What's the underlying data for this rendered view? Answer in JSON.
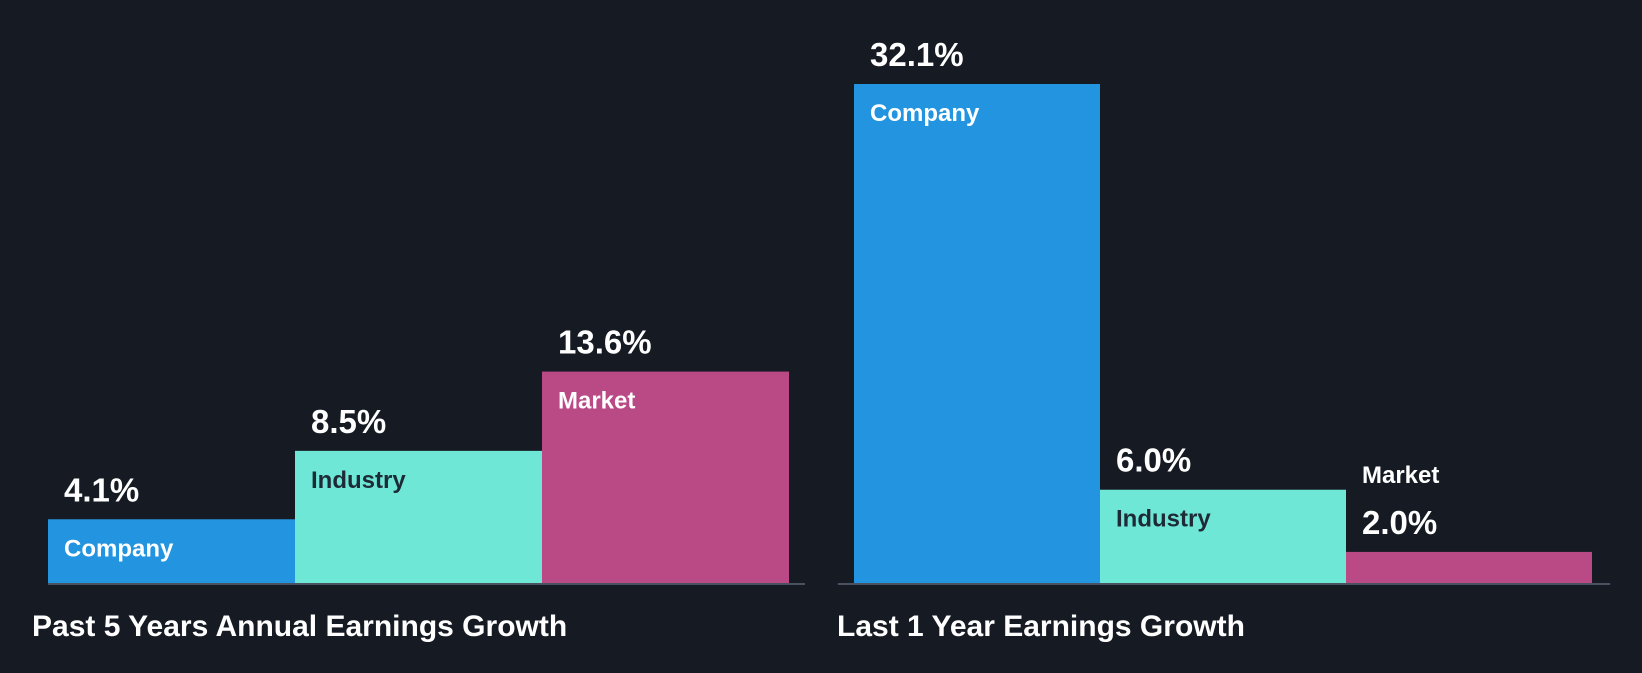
{
  "chart_data": [
    {
      "type": "bar",
      "title": "Past 5 Years Annual Earnings Growth",
      "categories": [
        "Company",
        "Industry",
        "Market"
      ],
      "values": [
        4.1,
        8.5,
        13.6
      ],
      "value_labels": [
        "4.1%",
        "8.5%",
        "13.6%"
      ],
      "colors": [
        "#2394df",
        "#6ee7d7",
        "#b94a86"
      ],
      "ylim": [
        0,
        32.1
      ]
    },
    {
      "type": "bar",
      "title": "Last 1 Year Earnings Growth",
      "categories": [
        "Company",
        "Industry",
        "Market"
      ],
      "values": [
        32.1,
        6.0,
        2.0
      ],
      "value_labels": [
        "32.1%",
        "6.0%",
        "2.0%"
      ],
      "colors": [
        "#2394df",
        "#6ee7d7",
        "#b94a86"
      ],
      "ylim": [
        0,
        32.1
      ]
    }
  ],
  "theme": {
    "background": "#161b23",
    "axis_color": "#4a5260",
    "value_text_color": "#ffffff",
    "title_text_color": "#ffffff",
    "label_text_on_dark": "#ffffff",
    "label_text_on_light": "#1e2b36"
  }
}
